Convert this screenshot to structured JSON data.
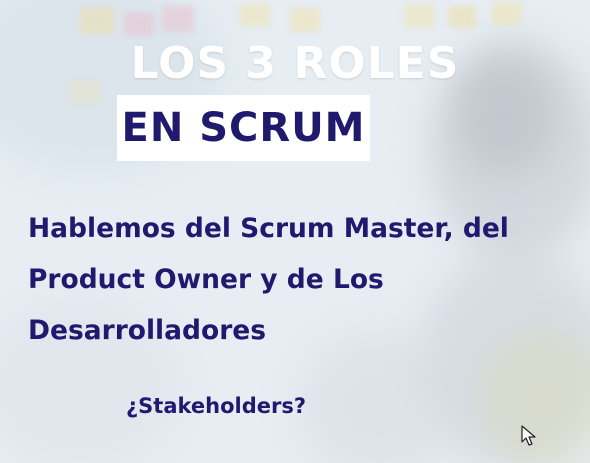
{
  "slide": {
    "title_line1": "LOS 3 ROLES",
    "title_line2": "EN SCRUM",
    "body_lines": [
      "Hablemos  del Scrum Master, del",
      "Product Owner y de Los",
      "Desarrolladores"
    ],
    "question": "¿Stakeholders?"
  },
  "colors": {
    "title_white": "#ffffff",
    "navy_text": "#1f1a6e",
    "title_box_bg": "#ffffff",
    "background_wash": "#dfe8ef"
  },
  "icons": [
    "mouse-pointer-icon"
  ]
}
